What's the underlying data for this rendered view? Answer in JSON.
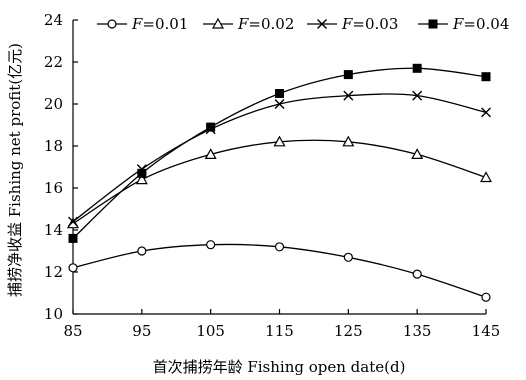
{
  "chart_data": {
    "type": "line",
    "xlabel": "首次捕捞年龄 Fishing open date(d)",
    "ylabel": "捕捞净收益 Fishing net profit(亿元)",
    "x": [
      85,
      95,
      105,
      115,
      125,
      135,
      145
    ],
    "xlim": [
      85,
      145
    ],
    "ylim": [
      10,
      24
    ],
    "x_ticks": [
      "85",
      "95",
      "105",
      "115",
      "125",
      "135",
      "145"
    ],
    "y_ticks": [
      "10",
      "12",
      "14",
      "16",
      "18",
      "20",
      "22",
      "24"
    ],
    "grid": false,
    "legend_position": "top",
    "series": [
      {
        "name": "F=0.01",
        "name_var": "F",
        "name_value": "=0.01",
        "marker": "circle-open",
        "values": [
          12.2,
          13.0,
          13.3,
          13.2,
          12.7,
          11.9,
          10.8
        ]
      },
      {
        "name": "F=0.02",
        "name_var": "F",
        "name_value": "=0.02",
        "marker": "triangle-open",
        "values": [
          14.3,
          16.4,
          17.6,
          18.2,
          18.2,
          17.6,
          16.5
        ]
      },
      {
        "name": "F=0.03",
        "name_var": "F",
        "name_value": "=0.03",
        "marker": "x",
        "values": [
          14.4,
          16.9,
          18.8,
          20.0,
          20.4,
          20.4,
          19.6
        ]
      },
      {
        "name": "F=0.04",
        "name_var": "F",
        "name_value": "=0.04",
        "marker": "square-filled",
        "values": [
          13.6,
          16.7,
          18.9,
          20.5,
          21.4,
          21.7,
          21.3
        ]
      }
    ]
  }
}
